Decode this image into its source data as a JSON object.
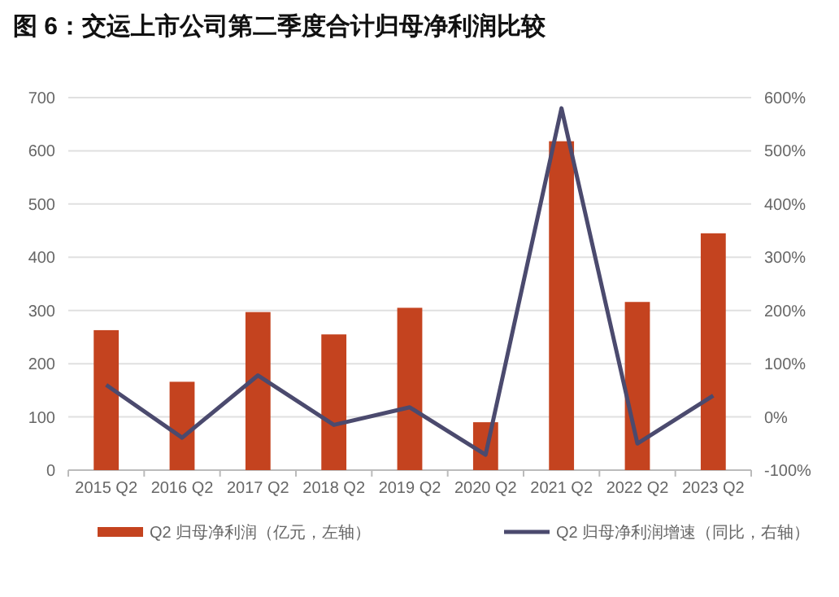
{
  "chart_data": {
    "type": "bar",
    "title": "图 6：交运上市公司第二季度合计归母净利润比较",
    "categories": [
      "2015 Q2",
      "2016 Q2",
      "2017 Q2",
      "2018 Q2",
      "2019 Q2",
      "2020 Q2",
      "2021 Q2",
      "2022 Q2",
      "2023 Q2"
    ],
    "series": [
      {
        "name": "Q2 归母净利润（亿元，左轴）",
        "color": "#c4431f",
        "values": [
          263,
          166,
          297,
          255,
          305,
          90,
          618,
          316,
          445
        ]
      },
      {
        "name": "Q2 归母净利润增速（同比，右轴）",
        "type": "line",
        "axis": "y2",
        "color": "#4b4a6e",
        "values": [
          60,
          -39,
          78,
          -15,
          18,
          -71,
          580,
          -50,
          40
        ]
      }
    ],
    "ylim": [
      0,
      700
    ],
    "yticks": [
      0,
      100,
      200,
      300,
      400,
      500,
      600,
      700
    ],
    "y2lim": [
      -100,
      600
    ],
    "y2ticks": [
      {
        "value": -100,
        "label": "-100%"
      },
      {
        "value": 0,
        "label": "0%"
      },
      {
        "value": 100,
        "label": "100%"
      },
      {
        "value": 200,
        "label": "200%"
      },
      {
        "value": 300,
        "label": "300%"
      },
      {
        "value": 400,
        "label": "400%"
      },
      {
        "value": 500,
        "label": "500%"
      },
      {
        "value": 600,
        "label": "600%"
      }
    ],
    "grid": "y",
    "legend": "bottom"
  }
}
